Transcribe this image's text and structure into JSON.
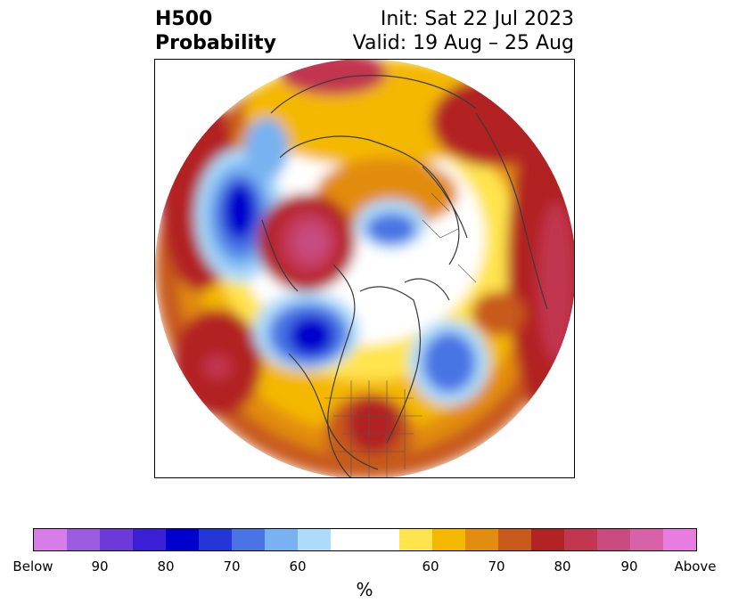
{
  "title": {
    "variable": "H500",
    "subtitle": "Probability",
    "init": "Init: Sat 22 Jul 2023",
    "valid": "Valid: 19 Aug – 25 Aug"
  },
  "map": {
    "projection": "north-polar-stereographic",
    "hemisphere": "northern",
    "features": [
      "coastlines",
      "country-borders",
      "state-borders"
    ]
  },
  "colorbar": {
    "label": "%",
    "colors": [
      "#d67de8",
      "#9c5ae0",
      "#6c3ad8",
      "#3a1fd4",
      "#0000cc",
      "#2436d8",
      "#4a74e4",
      "#78b2f0",
      "#addcfa",
      "#ffffff",
      "#ffe44e",
      "#f4b800",
      "#e28c10",
      "#c85a1c",
      "#b22424",
      "#c23650",
      "#c84c80",
      "#d862a8",
      "#e87ce0"
    ],
    "tick_labels": [
      "Below",
      "90",
      "80",
      "70",
      "60",
      "60",
      "70",
      "80",
      "90",
      "Above"
    ]
  }
}
